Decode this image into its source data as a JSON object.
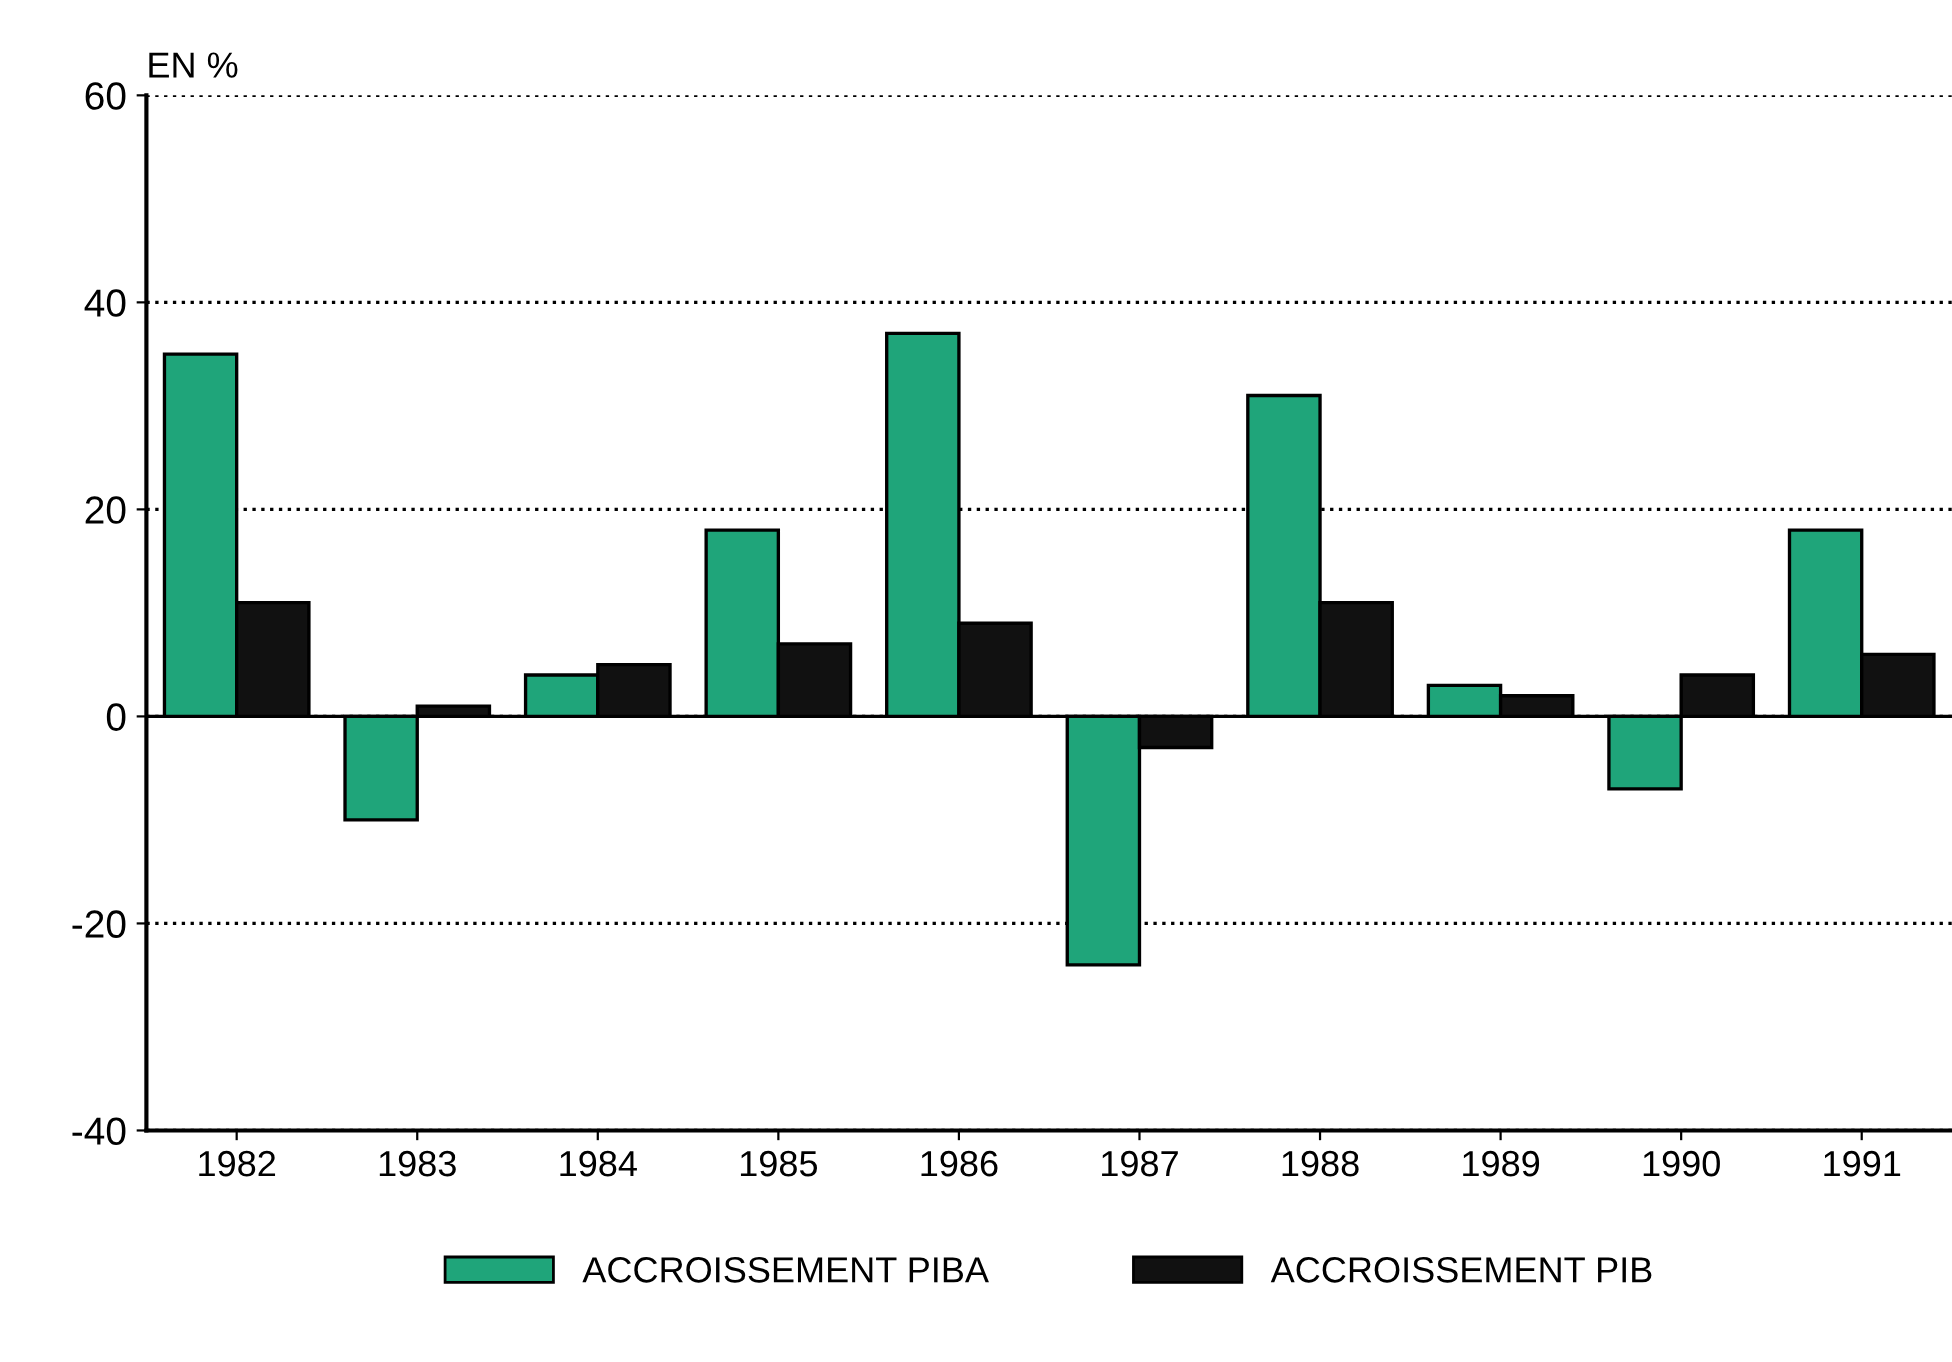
{
  "chart_data": {
    "type": "bar",
    "ylabel": "EN %",
    "categories": [
      "1982",
      "1983",
      "1984",
      "1985",
      "1986",
      "1987",
      "1988",
      "1989",
      "1990",
      "1991"
    ],
    "series": [
      {
        "name": "ACCROISSEMENT PIBA",
        "color": "#1fa57a",
        "values": [
          35,
          -10,
          4,
          18,
          37,
          -24,
          31,
          3,
          -7,
          18
        ]
      },
      {
        "name": "ACCROISSEMENT PIB",
        "color": "#111111",
        "values": [
          11,
          1,
          5,
          7,
          9,
          -3,
          11,
          2,
          4,
          6
        ]
      }
    ],
    "ylim": [
      -40,
      60
    ],
    "yticks": [
      -40,
      -20,
      0,
      20,
      40,
      60
    ],
    "grid": "y",
    "line_style": "dotted",
    "legend": "bottom"
  }
}
